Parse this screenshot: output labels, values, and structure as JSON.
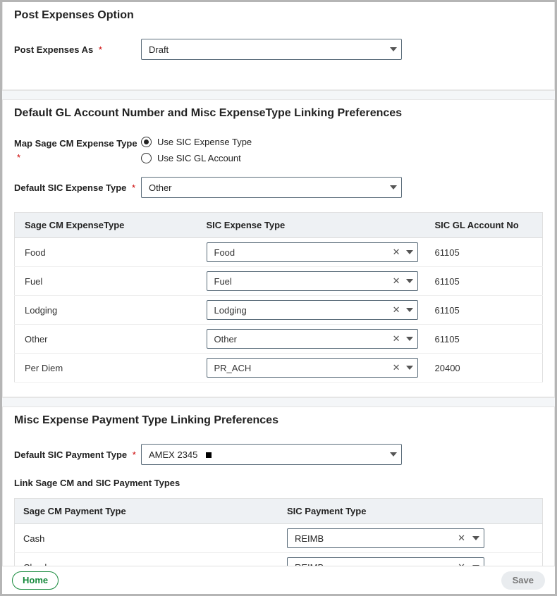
{
  "colors": {
    "border": "#b5b5b5",
    "section_gap_bg": "#f4f6f8",
    "table_header_bg": "#eef1f4",
    "select_border": "#5a6c7a",
    "required": "#cc0000",
    "home_btn": "#178a3c",
    "save_btn_bg": "#e9ecef",
    "save_btn_text": "#777777"
  },
  "section1": {
    "title": "Post Expenses Option",
    "field_label": "Post Expenses As",
    "required": "*",
    "select_value": "Draft"
  },
  "section2": {
    "title": "Default GL Account Number and Misc ExpenseType Linking Preferences",
    "map_label": "Map Sage CM Expense Type",
    "required": "*",
    "radio_options": [
      {
        "label": "Use SIC Expense Type",
        "checked": true
      },
      {
        "label": "Use SIC GL Account",
        "checked": false
      }
    ],
    "default_sic_label": "Default SIC Expense Type",
    "default_sic_value": "Other",
    "table": {
      "columns": [
        "Sage CM ExpenseType",
        "SIC Expense Type",
        "SIC GL Account No"
      ],
      "rows": [
        {
          "cm": "Food",
          "sic": "Food",
          "gl": "61105"
        },
        {
          "cm": "Fuel",
          "sic": "Fuel",
          "gl": "61105"
        },
        {
          "cm": "Lodging",
          "sic": "Lodging",
          "gl": "61105"
        },
        {
          "cm": "Other",
          "sic": "Other",
          "gl": "61105"
        },
        {
          "cm": "Per Diem",
          "sic": "PR_ACH",
          "gl": "20400"
        }
      ]
    }
  },
  "section3": {
    "title": "Misc Expense Payment Type Linking Preferences",
    "default_pay_label": "Default SIC Payment Type",
    "required": "*",
    "default_pay_value": "AMEX 2345",
    "sub_heading": "Link Sage CM and SIC Payment Types",
    "table": {
      "columns": [
        "Sage CM Payment Type",
        "SIC Payment Type"
      ],
      "rows": [
        {
          "cm": "Cash",
          "sic": "REIMB"
        },
        {
          "cm": "Check",
          "sic": "REIMB"
        }
      ]
    }
  },
  "footer": {
    "home": "Home",
    "save": "Save"
  }
}
